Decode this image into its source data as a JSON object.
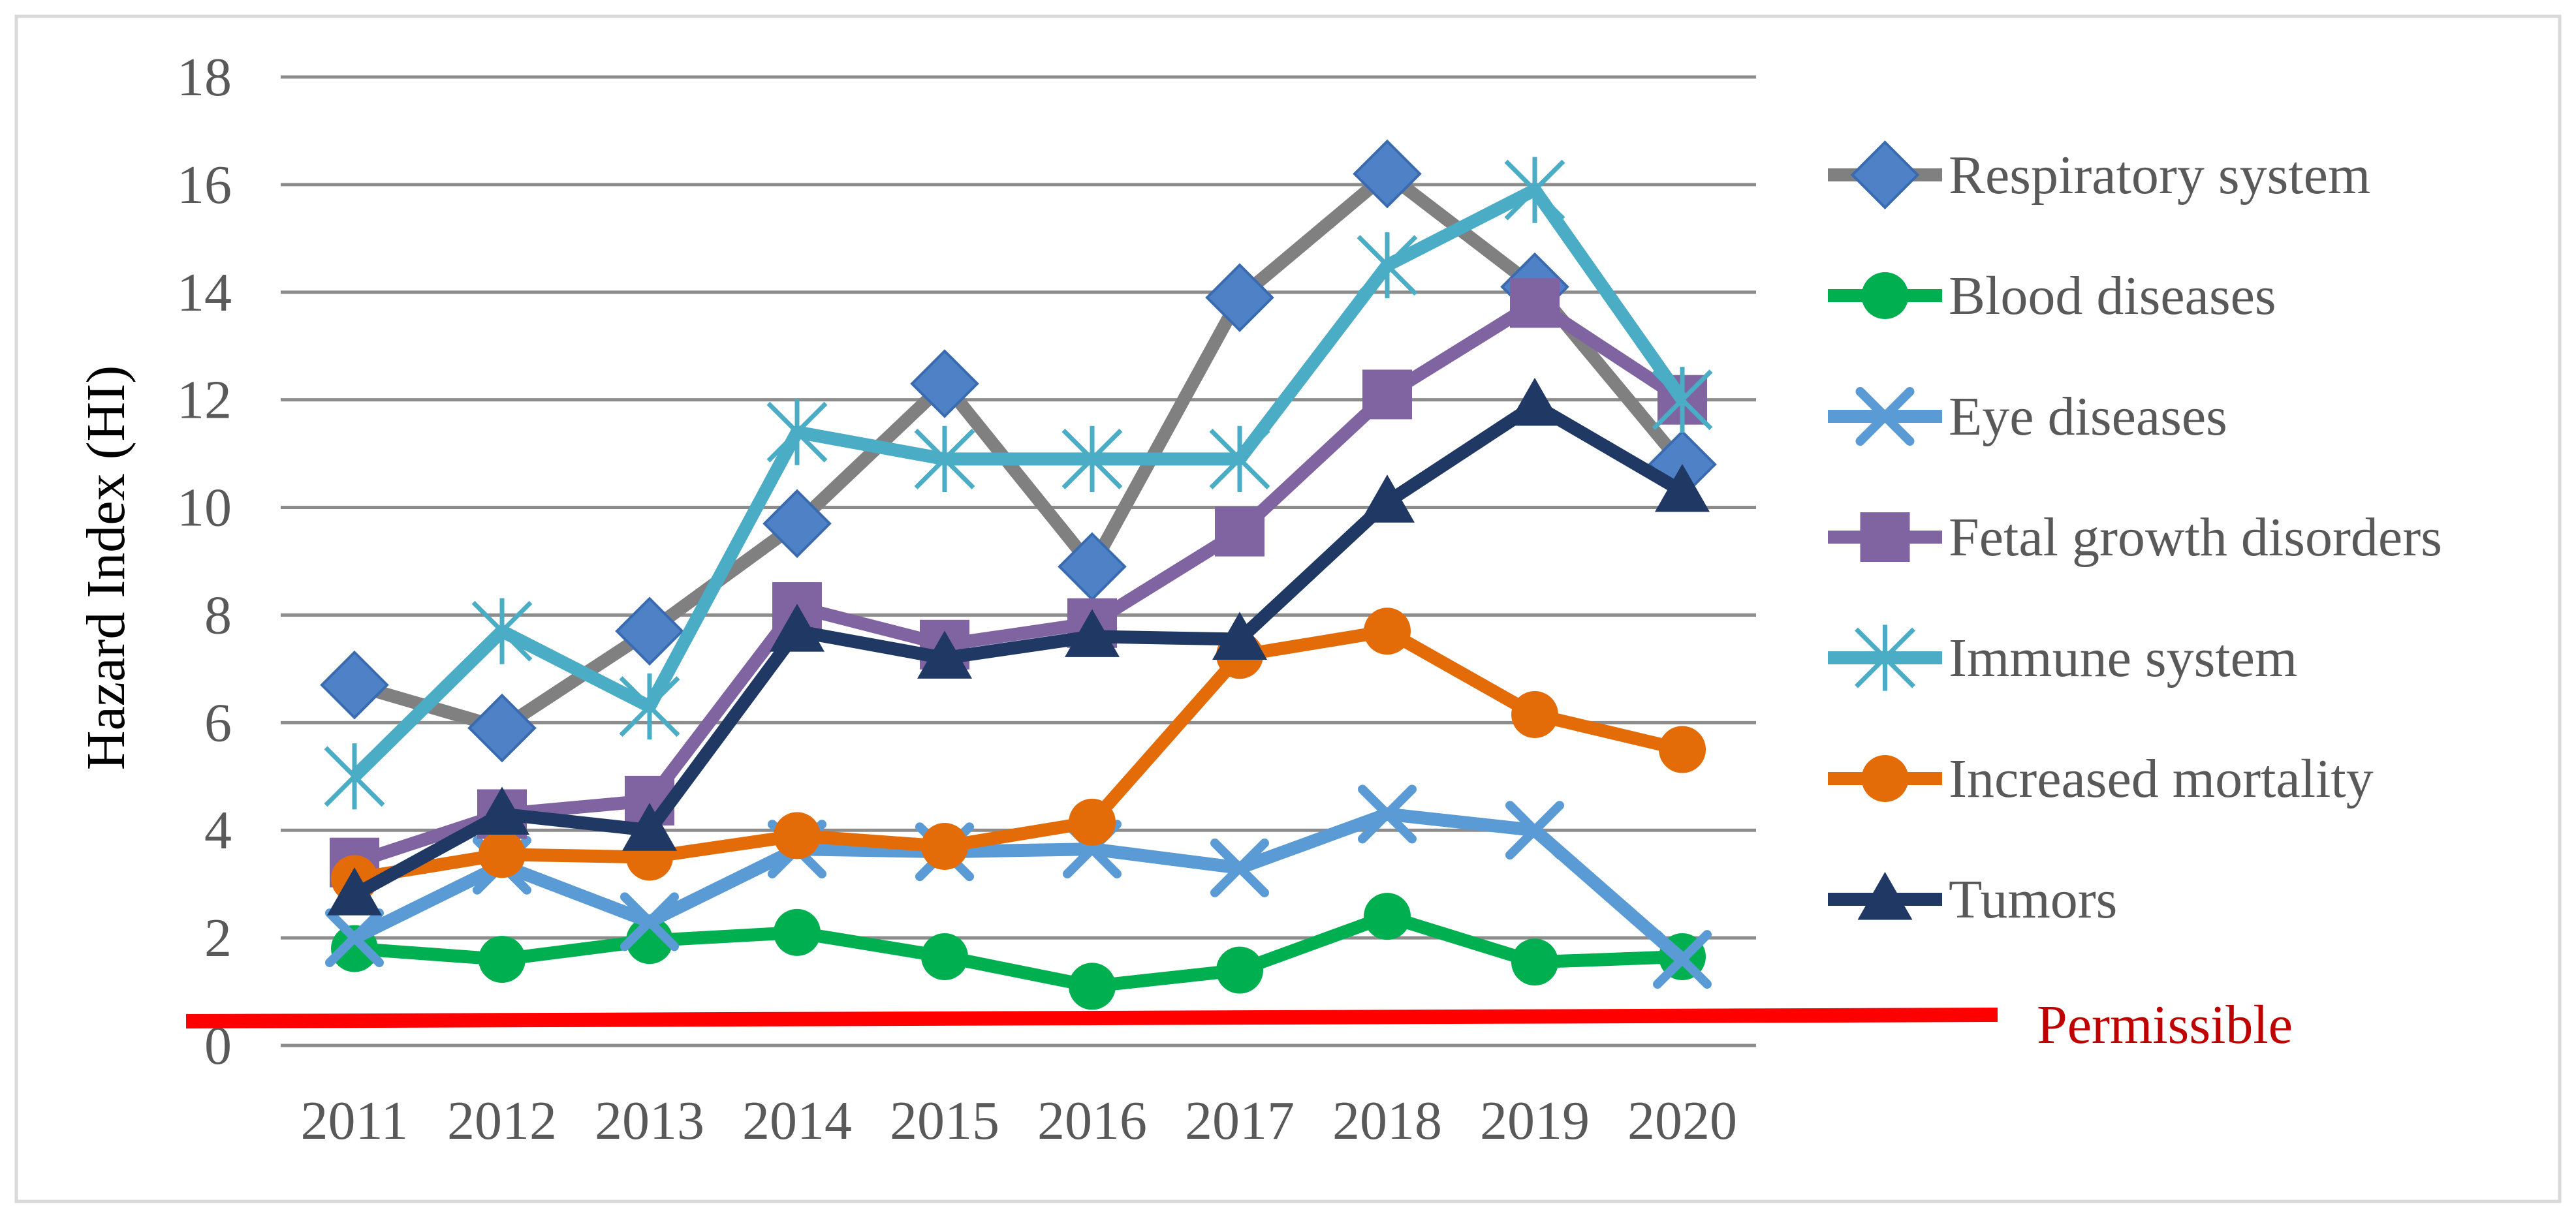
{
  "chart_data": {
    "type": "line",
    "title": "",
    "xlabel": "",
    "ylabel": "Hazard Index (HI)",
    "ylim": [
      0,
      18
    ],
    "yticks": [
      0,
      2,
      4,
      6,
      8,
      10,
      12,
      14,
      16,
      18
    ],
    "grid": true,
    "legend_position": "right",
    "categories": [
      "2011",
      "2012",
      "2013",
      "2014",
      "2015",
      "2016",
      "2017",
      "2018",
      "2019",
      "2020"
    ],
    "series": [
      {
        "name": "Respiratory system",
        "line_color": "#808080",
        "marker_color": "#4F81C7",
        "marker": "diamond",
        "values": [
          6.7,
          5.9,
          7.7,
          9.7,
          12.3,
          8.9,
          13.9,
          16.2,
          14.1,
          10.8
        ]
      },
      {
        "name": "Blood diseases",
        "line_color": "#00B050",
        "marker_color": "#00B050",
        "marker": "circle",
        "values": [
          1.8,
          1.6,
          1.95,
          2.1,
          1.65,
          1.1,
          1.4,
          2.4,
          1.55,
          1.65
        ]
      },
      {
        "name": "Eye diseases",
        "line_color": "#5B9BD5",
        "marker_color": "#5B9BD5",
        "marker": "x",
        "values": [
          2.0,
          3.35,
          2.3,
          3.65,
          3.6,
          3.65,
          3.3,
          4.3,
          4.0,
          1.6
        ]
      },
      {
        "name": "Fetal growth disorders",
        "line_color": "#8064A2",
        "marker_color": "#8064A2",
        "marker": "square",
        "values": [
          3.4,
          4.3,
          4.55,
          8.15,
          7.45,
          7.85,
          9.55,
          12.1,
          13.8,
          12.0
        ]
      },
      {
        "name": "Immune system",
        "line_color": "#4BACC6",
        "marker_color": "#4BACC6",
        "marker": "star",
        "values": [
          5.0,
          7.7,
          6.3,
          11.4,
          10.9,
          10.9,
          10.9,
          14.5,
          15.9,
          12.0
        ]
      },
      {
        "name": "Increased mortality",
        "line_color": "#E36C09",
        "marker_color": "#E36C09",
        "marker": "circle",
        "values": [
          3.1,
          3.55,
          3.5,
          3.9,
          3.7,
          4.15,
          7.25,
          7.7,
          6.15,
          5.5
        ]
      },
      {
        "name": "Tumors",
        "line_color": "#1F3864",
        "marker_color": "#1F3864",
        "marker": "triangle",
        "values": [
          2.8,
          4.3,
          4.0,
          7.7,
          7.2,
          7.6,
          7.55,
          10.1,
          11.9,
          10.3
        ]
      }
    ],
    "reference_line": {
      "label": "Permissible",
      "value": 0.6,
      "color": "#FF0000",
      "label_color": "#C00000"
    }
  }
}
